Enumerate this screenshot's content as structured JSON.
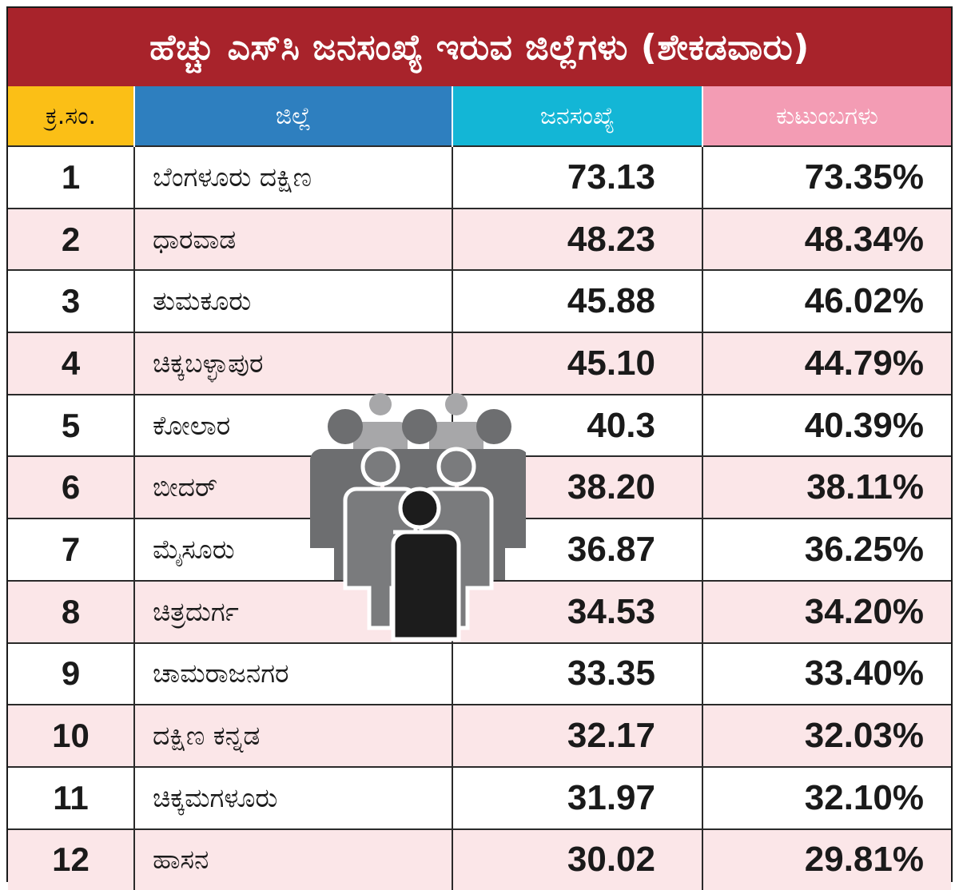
{
  "title": "ಹೆಚ್ಚು ಎಸ್‌ಸಿ ಜನಸಂಖ್ಯೆ ಇರುವ ಜಿಲ್ಲೆಗಳು (ಶೇಕಡವಾರು)",
  "columns": {
    "serial": "ಕ್ರ.ಸಂ.",
    "district": "ಜಿಲ್ಲೆ",
    "population": "ಜನಸಂಖ್ಯೆ",
    "families": "ಕುಟುಂಬಗಳು"
  },
  "rows": [
    {
      "no": "1",
      "district": "ಬೆಂಗಳೂರು ದಕ್ಷಿಣ",
      "population": "73.13",
      "families": "73.35%"
    },
    {
      "no": "2",
      "district": "ಧಾರವಾಡ",
      "population": "48.23",
      "families": "48.34%"
    },
    {
      "no": "3",
      "district": "ತುಮಕೂರು",
      "population": "45.88",
      "families": "46.02%"
    },
    {
      "no": "4",
      "district": "ಚಿಕ್ಕಬಳ್ಳಾಪುರ",
      "population": "45.10",
      "families": "44.79%"
    },
    {
      "no": "5",
      "district": "ಕೋಲಾರ",
      "population": "40.3",
      "families": "40.39%"
    },
    {
      "no": "6",
      "district": "ಬೀದರ್",
      "population": "38.20",
      "families": "38.11%"
    },
    {
      "no": "7",
      "district": "ಮೈಸೂರು",
      "population": "36.87",
      "families": "36.25%"
    },
    {
      "no": "8",
      "district": "ಚಿತ್ರದುರ್ಗ",
      "population": "34.53",
      "families": "34.20%"
    },
    {
      "no": "9",
      "district": "ಚಾಮರಾಜನಗರ",
      "population": "33.35",
      "families": "33.40%"
    },
    {
      "no": "10",
      "district": "ದಕ್ಷಿಣ ಕನ್ನಡ",
      "population": "32.17",
      "families": "32.03%"
    },
    {
      "no": "11",
      "district": "ಚಿಕ್ಕಮಗಳೂರು",
      "population": "31.97",
      "families": "32.10%"
    },
    {
      "no": "12",
      "district": "ಹಾಸನ",
      "population": "30.02",
      "families": "29.81%"
    }
  ],
  "colors": {
    "title_bg": "#a8232b",
    "serial_header": "#fbbf16",
    "district_header": "#2e7fbf",
    "population_header": "#13b6d6",
    "families_header": "#f39cb4",
    "alt_row": "#fbe6e8"
  },
  "icons": {
    "people_group": "people-group-icon"
  }
}
